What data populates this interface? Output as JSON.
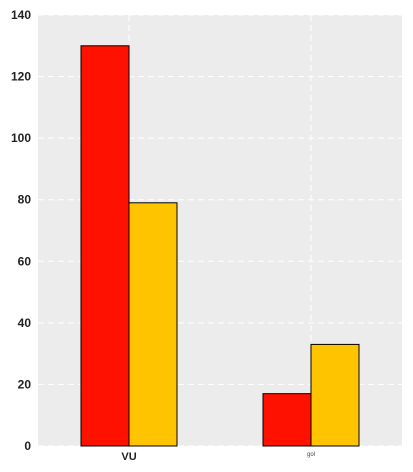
{
  "chart_data": {
    "type": "bar",
    "title": "",
    "xlabel": "",
    "ylabel": "",
    "categories": [
      "VU",
      "gol"
    ],
    "series": [
      {
        "values": [
          130,
          17
        ],
        "color": "#ff1100"
      },
      {
        "values": [
          79,
          33
        ],
        "color": "#ffc400"
      }
    ],
    "ylim": [
      0,
      140
    ],
    "yticks": [
      0,
      20,
      40,
      60,
      80,
      100,
      120,
      140
    ],
    "grid": true,
    "legend": "none",
    "colors": {
      "plot_background": "#ececec",
      "grid": "#ffffff",
      "bar_edge": "#000000"
    }
  }
}
